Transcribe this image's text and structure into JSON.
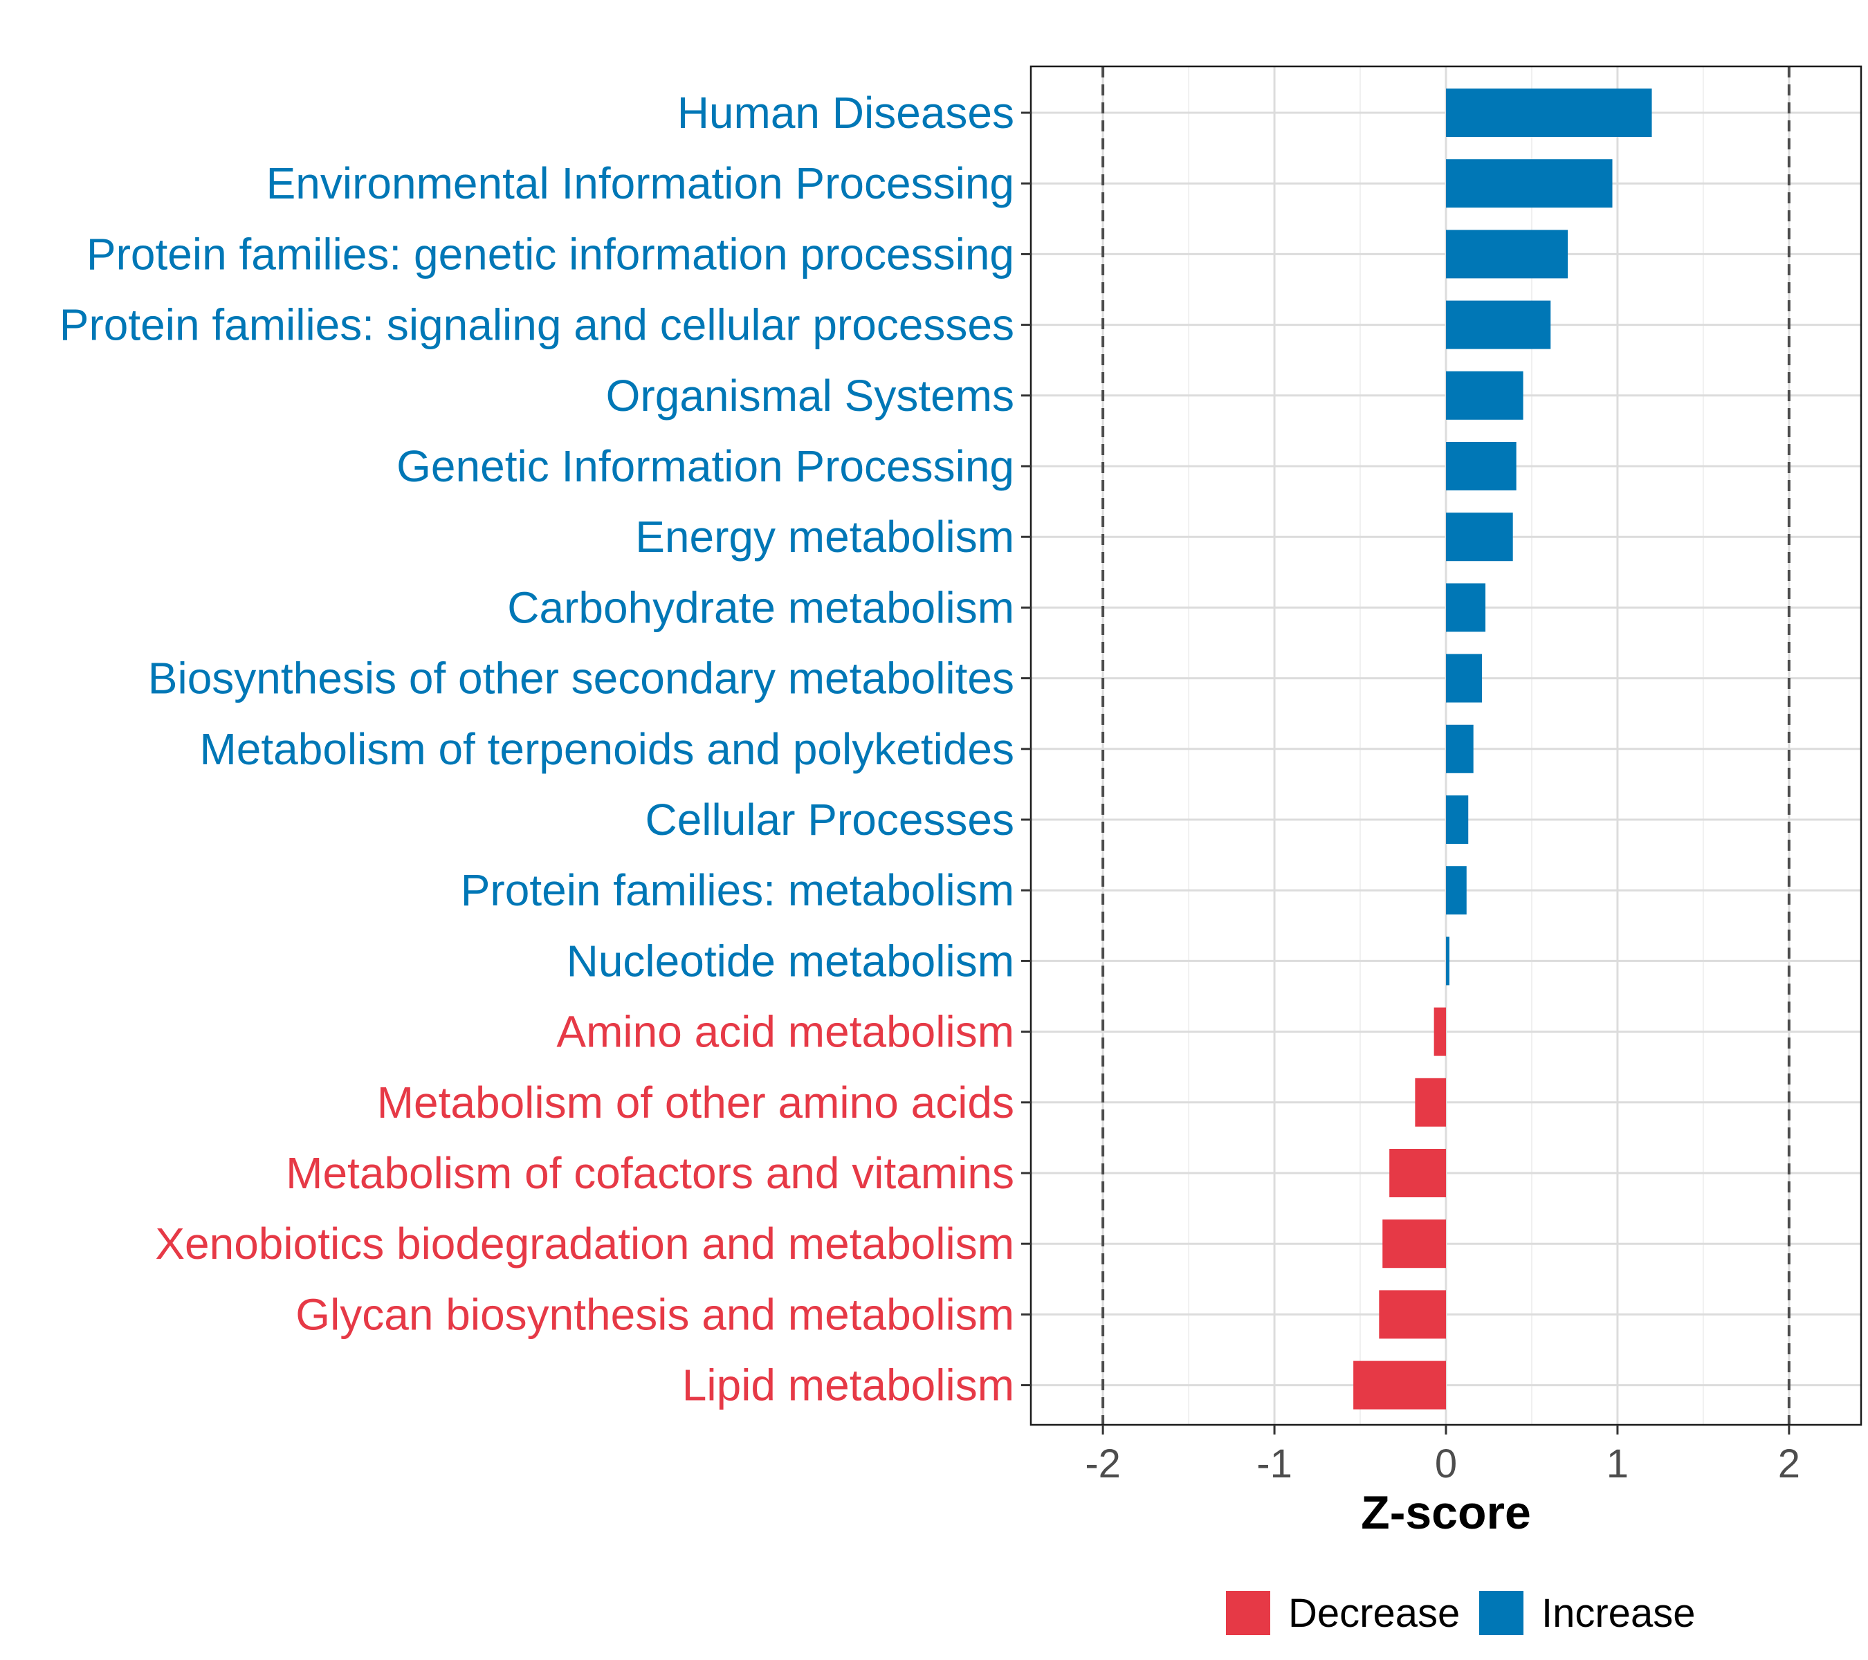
{
  "chart_data": {
    "type": "bar",
    "orientation": "horizontal",
    "xlabel": "Z-score",
    "xlim": [
      -2.42,
      2.42
    ],
    "xticks": [
      -2,
      -1,
      0,
      1,
      2
    ],
    "xtick_labels": [
      "-2",
      "-1",
      "0",
      "1",
      "2"
    ],
    "reference_lines": [
      -2,
      2
    ],
    "grid": true,
    "categories": [
      "Human Diseases",
      "Environmental Information Processing",
      "Protein families: genetic information processing",
      "Protein families: signaling and cellular processes",
      "Organismal Systems",
      "Genetic Information Processing",
      "Energy metabolism",
      "Carbohydrate metabolism",
      "Biosynthesis of other secondary metabolites",
      "Metabolism of terpenoids and polyketides",
      "Cellular Processes",
      "Protein families: metabolism",
      "Nucleotide metabolism",
      "Amino acid metabolism",
      "Metabolism of other amino acids",
      "Metabolism of cofactors and vitamins",
      "Xenobiotics biodegradation and metabolism",
      "Glycan biosynthesis and metabolism",
      "Lipid metabolism"
    ],
    "values": [
      1.2,
      0.97,
      0.71,
      0.61,
      0.45,
      0.41,
      0.39,
      0.23,
      0.21,
      0.16,
      0.13,
      0.12,
      0.02,
      -0.07,
      -0.18,
      -0.33,
      -0.37,
      -0.39,
      -0.54
    ],
    "groups": [
      "Increase",
      "Increase",
      "Increase",
      "Increase",
      "Increase",
      "Increase",
      "Increase",
      "Increase",
      "Increase",
      "Increase",
      "Increase",
      "Increase",
      "Increase",
      "Decrease",
      "Decrease",
      "Decrease",
      "Decrease",
      "Decrease",
      "Decrease"
    ],
    "legend": {
      "position": "bottom",
      "entries": [
        {
          "label": "Decrease",
          "color": "#E63946"
        },
        {
          "label": "Increase",
          "color": "#0077B6"
        }
      ]
    }
  }
}
